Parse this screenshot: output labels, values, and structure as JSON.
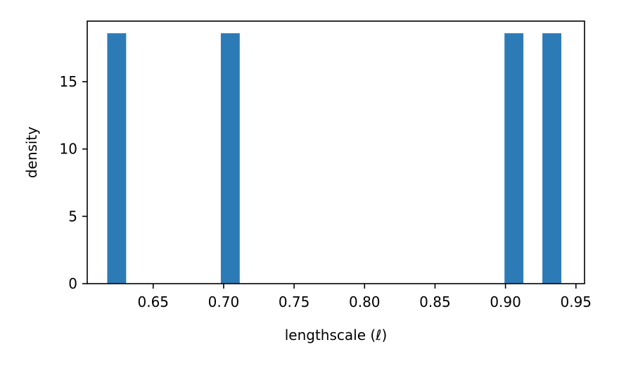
{
  "chart_data": {
    "type": "bar",
    "title": "",
    "xlabel": "lengthscale (ℓ)",
    "ylabel": "density",
    "xlim": [
      0.6032,
      0.9561
    ],
    "ylim": [
      0,
      19.5
    ],
    "xticks": [
      0.65,
      0.7,
      0.75,
      0.8,
      0.85,
      0.9,
      0.95
    ],
    "xtick_labels": [
      "0.65",
      "0.70",
      "0.75",
      "0.80",
      "0.85",
      "0.90",
      "0.95"
    ],
    "yticks": [
      0,
      5,
      10,
      15
    ],
    "ytick_labels": [
      "0",
      "5",
      "10",
      "15"
    ],
    "bin_width": 0.01342,
    "bars": [
      {
        "x_start": 0.6174,
        "density": 18.6
      },
      {
        "x_start": 0.698,
        "density": 18.6
      },
      {
        "x_start": 0.8993,
        "density": 18.6
      },
      {
        "x_start": 0.9262,
        "density": 18.6
      }
    ],
    "bar_color": "#2c7bb6",
    "grid": false,
    "legend": "none"
  }
}
